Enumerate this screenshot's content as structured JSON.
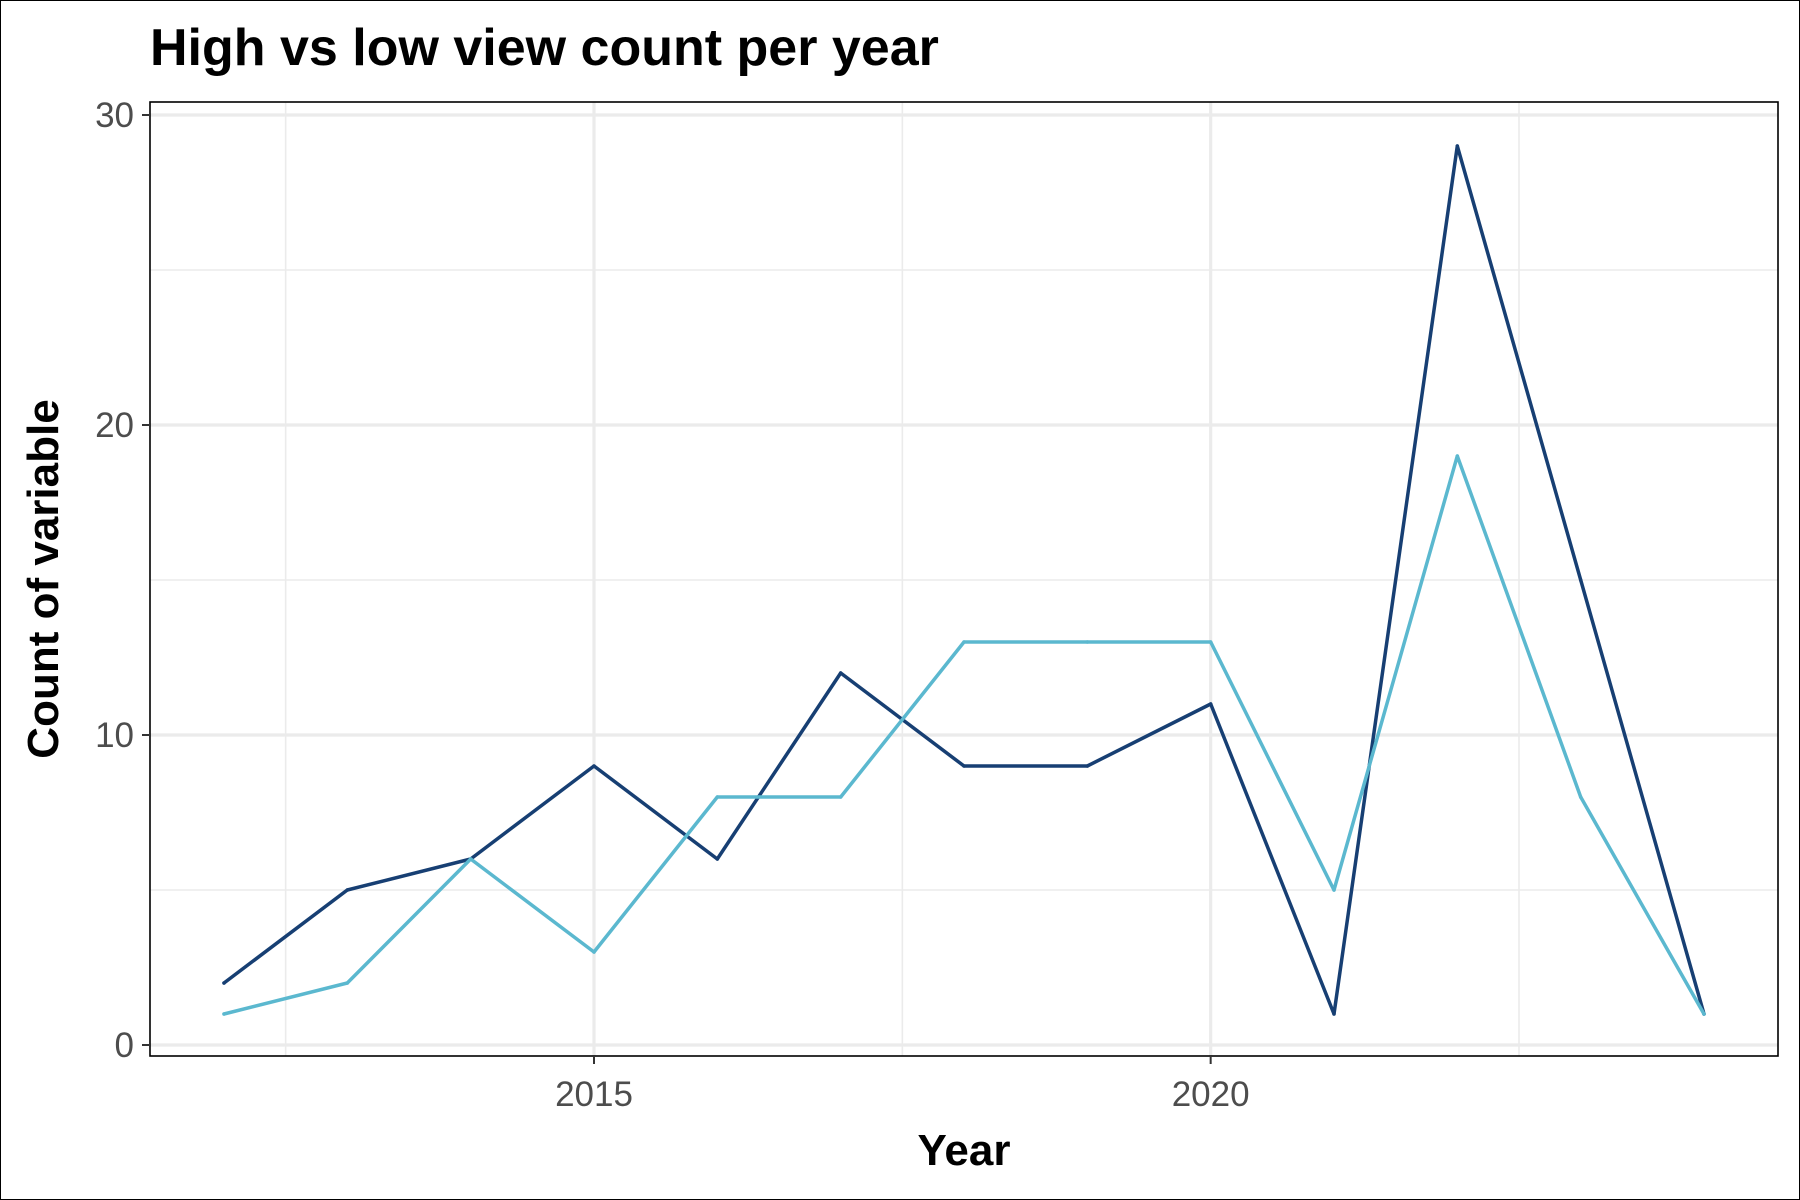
{
  "chart_data": {
    "type": "line",
    "title": "High vs low view count per year",
    "xlabel": "Year",
    "ylabel": "Count of variable",
    "x": [
      2012,
      2013,
      2014,
      2015,
      2016,
      2017,
      2018,
      2019,
      2020,
      2021,
      2022,
      2023,
      2024
    ],
    "xlim": [
      2011.4,
      2024.6
    ],
    "ylim": [
      0,
      30
    ],
    "x_ticks": [
      2015,
      2020
    ],
    "x_tick_labels": [
      "2015",
      "2020"
    ],
    "y_ticks": [
      0,
      10,
      20,
      30
    ],
    "y_tick_labels": [
      "0",
      "10",
      "20",
      "30"
    ],
    "grid": true,
    "legend": "none",
    "series": [
      {
        "color": "#173f73",
        "values": [
          2,
          5,
          6,
          9,
          6,
          12,
          9,
          9,
          11,
          1,
          29,
          15,
          1
        ]
      },
      {
        "color": "#5bb8cf",
        "values": [
          1,
          2,
          6,
          3,
          8,
          8,
          13,
          13,
          13,
          5,
          19,
          8,
          1
        ]
      }
    ]
  }
}
